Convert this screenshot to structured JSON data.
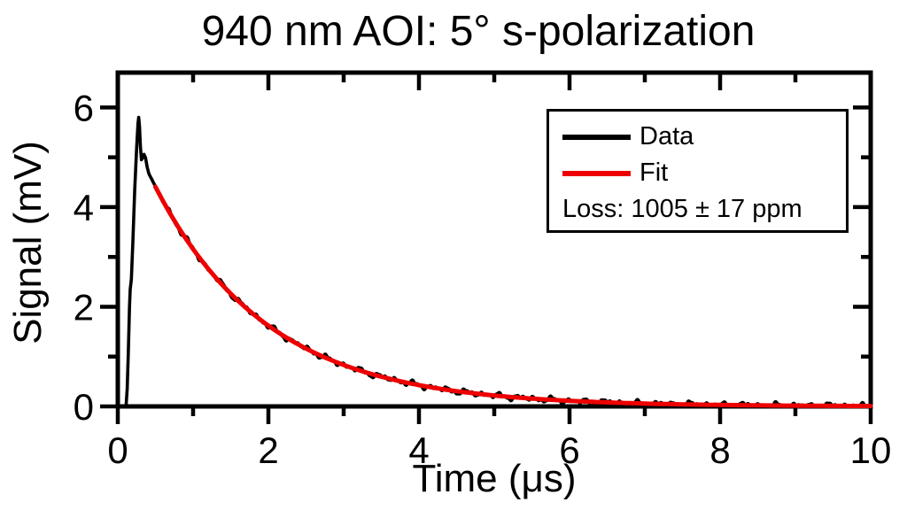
{
  "chart": {
    "type": "line",
    "title": "940 nm AOI: 5° s-polarization",
    "xlabel": "Time (μs)",
    "ylabel": "Signal (mV)",
    "xlim": [
      0,
      10
    ],
    "ylim": [
      0,
      6.7
    ],
    "grid": false,
    "frame": true,
    "xticks": {
      "major": [
        0,
        2,
        4,
        6,
        8,
        10
      ],
      "minor": [
        1,
        3,
        5,
        7,
        9
      ],
      "labels": [
        "0",
        "2",
        "4",
        "6",
        "8",
        "10"
      ]
    },
    "yticks": {
      "major": [
        0,
        2,
        4,
        6
      ],
      "minor": [
        1,
        3,
        5
      ],
      "labels": [
        "0",
        "2",
        "4",
        "6"
      ]
    },
    "colors": {
      "data": "#000000",
      "fit": "#ee0000",
      "axis": "#000000"
    },
    "legend": {
      "position": "top-right",
      "data_label": "Data",
      "fit_label": "Fit",
      "loss_label": "Loss: 1005 ± 17 ppm"
    },
    "loss_ppm": {
      "value": 1005,
      "uncertainty": 17,
      "unit": "ppm"
    },
    "series": [
      {
        "name": "Data",
        "color": "#000000",
        "style": "noisy-measured ring-down trace"
      },
      {
        "name": "Fit",
        "color": "#ee0000",
        "style": "smooth",
        "model": "A·exp(-t/tau)",
        "A_mV": 6.15,
        "tau_us": 1.5,
        "t_start_us": 0.5,
        "t_end_us": 10
      }
    ],
    "data_profile": {
      "baseline_mV": 0,
      "rise_points": [
        [
          0,
          0
        ],
        [
          0.11,
          0
        ],
        [
          0.125,
          0.35
        ],
        [
          0.14,
          1.1
        ],
        [
          0.155,
          2.0
        ],
        [
          0.165,
          2.35
        ],
        [
          0.18,
          2.55
        ],
        [
          0.2,
          3.3
        ],
        [
          0.225,
          4.35
        ],
        [
          0.25,
          5.2
        ],
        [
          0.268,
          5.68
        ],
        [
          0.278,
          5.8
        ],
        [
          0.288,
          5.62
        ],
        [
          0.3,
          5.22
        ],
        [
          0.314,
          4.95
        ],
        [
          0.33,
          4.99
        ],
        [
          0.348,
          5.06
        ],
        [
          0.368,
          4.99
        ],
        [
          0.39,
          4.8
        ],
        [
          0.41,
          4.69
        ]
      ],
      "peak": {
        "t_us": 0.28,
        "signal_mV": 5.8
      },
      "decay_A_mV": 6.15,
      "decay_tau_us": 1.5,
      "noise_amp_mV": 0.05,
      "end_signal_mV": 0.01
    },
    "chart_data_note": "black data: flat 0 until t≈0.11 μs, sharp rise to 5.8 mV peak at t≈0.28 μs, small dip/bump ≈5.0 mV near t≈0.32–0.37 μs, then noisy exponential decay S(t)=6.15·exp(-t/1.5) mV reaching ≈0.01 mV at t=10 μs; red fit drawn from t=0.5 μs (≈4.4 mV) to t=10 μs"
  },
  "chart_data": {
    "type": "line",
    "title": "940 nm AOI: 5° s-polarization",
    "xlabel": "Time (μs)",
    "ylabel": "Signal (mV)",
    "xlim": [
      0,
      10
    ],
    "ylim": [
      0,
      6.7
    ],
    "legend_position": "top-right",
    "series": [
      {
        "name": "Data",
        "x": [
          0,
          0.11,
          0.155,
          0.2,
          0.25,
          0.28,
          0.32,
          0.37,
          0.5,
          1,
          1.5,
          2,
          2.5,
          3,
          3.5,
          4,
          5,
          6,
          7,
          8,
          9,
          10
        ],
        "y": [
          0,
          0,
          2.0,
          3.3,
          5.2,
          5.8,
          4.95,
          5.02,
          4.42,
          3.15,
          2.26,
          1.62,
          1.16,
          0.83,
          0.6,
          0.43,
          0.22,
          0.11,
          0.06,
          0.03,
          0.02,
          0.01
        ]
      },
      {
        "name": "Fit",
        "x": [
          0.5,
          1,
          1.5,
          2,
          2.5,
          3,
          3.5,
          4,
          5,
          6,
          7,
          8,
          9,
          10
        ],
        "y": [
          4.41,
          3.15,
          2.26,
          1.62,
          1.16,
          0.83,
          0.6,
          0.43,
          0.22,
          0.11,
          0.058,
          0.03,
          0.015,
          0.008
        ]
      }
    ],
    "annotations": [
      "Loss: 1005 ± 17 ppm"
    ]
  }
}
